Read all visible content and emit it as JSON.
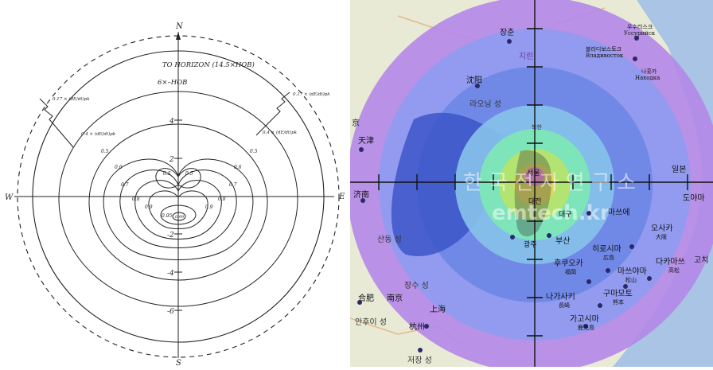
{
  "left_diagram": {
    "compass": {
      "north": "N",
      "south": "S",
      "east": "E",
      "west": "W"
    },
    "horizon_label": "TO   HORIZON (14.5×HOB)",
    "hob_label": "6×–HOB",
    "axis_ticks": {
      "up4": "4",
      "up2": "2",
      "down2": "-2",
      "down4": "-4",
      "down6": "-6"
    },
    "ratio_label_left": "0.17 × (dE/dt)pk",
    "ratio_label_right": "0.17 × (dE/dt)pk",
    "ratio_label_left2": "0.4 × (dE/dt)pk",
    "ratio_label_right2": "0.4 × (dE/dt)pk",
    "contour_labels": {
      "c05_left": "0.5",
      "c05_right": "0.5",
      "c06_left": "0.6",
      "c06_right": "0.6",
      "c07_left": "0.7",
      "c07_right": "0.7",
      "c08_left": "0.8",
      "c08_right": "0.8",
      "c09_left": "0.9",
      "c09_right": "0.9",
      "c095": "0.95",
      "c099": "0.99",
      "lobe_left": "0.5",
      "lobe_right": "0.5"
    }
  },
  "right_map": {
    "watermark_title": "한 국 전 자 연 구 소",
    "watermark_url": "emtech.kr",
    "cities": {
      "changchun": "장춘",
      "ussuriysk_ko": "우수리스크",
      "ussuriysk_ru": "Уссурийск",
      "vladivostok_ko": "블라디보스토크",
      "vladivostok_ru": "Владивосток",
      "nakhodka_ko": "나홋카",
      "nakhodka_ru": "Находка",
      "jilin": "지린",
      "shenyang": "沈阳",
      "liaoning": "라오닝 성",
      "beijing": "京",
      "tianjin": "天津",
      "north": "북한",
      "seoul": "서울",
      "daejeon": "대전",
      "daegu": "대구",
      "gwangju": "광주",
      "busan": "부산",
      "jinan": "济南",
      "shandong": "산동 성",
      "japan": "일본",
      "toyama": "도야마",
      "matsue": "마쓰에",
      "osaka": "오사카",
      "osaka_kanji": "大阪",
      "hiroshima": "히로시마",
      "hiroshima_kanji": "広島",
      "fukuoka": "후쿠오카",
      "fukuoka_kanji": "福岡",
      "matsuyama": "마쓰야마",
      "matsuyama_kanji": "松山",
      "takamatsu": "다카마쓰",
      "takamatsu_kanji": "高松",
      "kochi": "고치",
      "nagasaki": "나가사키",
      "nagasaki_kanji": "長崎",
      "kumamoto": "구마모토",
      "kumamoto_kanji": "熊本",
      "kagoshima": "가고시마",
      "kagoshima_kanji": "鹿児島",
      "jiangsu": "장수 성",
      "nanjing": "南京",
      "hefei": "合肥",
      "anhui": "안후이 성",
      "shanghai": "上海",
      "hangzhou": "杭州",
      "zhejiang": "저장 성"
    },
    "colors": {
      "ring_outer": "#b489e8",
      "ring_2": "#8f9cef",
      "ring_3": "#6f88e6",
      "ring_4": "#85c0ea",
      "ring_5": "#7de6b7",
      "ring_6": "#b6e36b",
      "ring_7": "#e2d85c",
      "ring_center": "#f08ad8",
      "sea": "#5c74d6"
    }
  }
}
